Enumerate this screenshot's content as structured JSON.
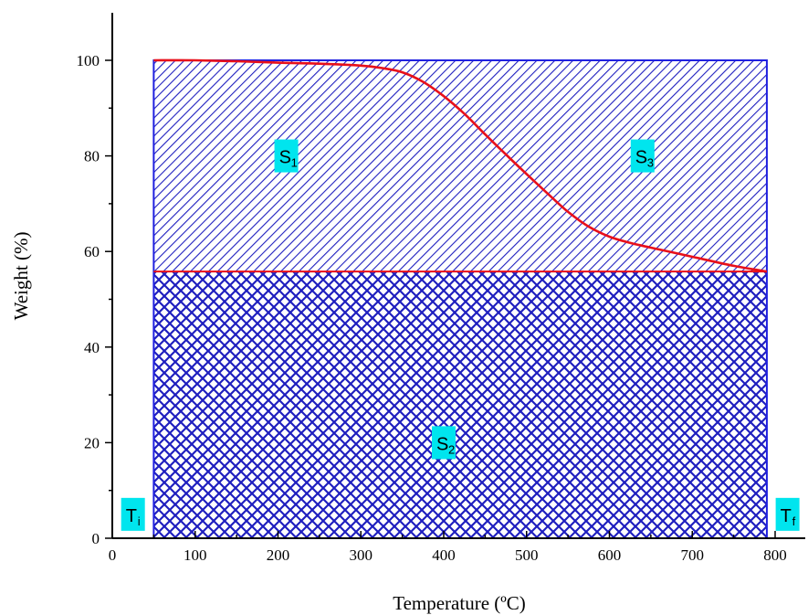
{
  "chart_data": {
    "type": "area",
    "xlabel": "Temperature (ºC)",
    "ylabel": "Weight (%)",
    "xlim": [
      0,
      800
    ],
    "ylim": [
      0,
      100
    ],
    "xticks": [
      0,
      100,
      200,
      300,
      400,
      500,
      600,
      700,
      800
    ],
    "yticks": [
      0,
      20,
      40,
      60,
      80,
      100
    ],
    "grid": false,
    "colors": {
      "hatch": "#1f1fbf",
      "border": "#2020e0",
      "curve": "#e8101a",
      "label_bg": "#00e5ee"
    },
    "series": [
      {
        "x": [
          50,
          100,
          150,
          200,
          250,
          300,
          325,
          350,
          375,
          400,
          425,
          450,
          475,
          500,
          525,
          550,
          575,
          600,
          625,
          650,
          700,
          750,
          790
        ],
        "y": [
          100,
          100,
          99.8,
          99.5,
          99.3,
          98.9,
          98.4,
          97.5,
          95.5,
          92.5,
          88.8,
          84.5,
          80.3,
          76.2,
          72.2,
          68.3,
          65.2,
          63.1,
          61.8,
          60.8,
          58.9,
          57.0,
          55.8
        ]
      }
    ],
    "regions": [
      {
        "label": "S",
        "sub": "1",
        "x": 210,
        "y": 80
      },
      {
        "label": "S",
        "sub": "3",
        "x": 640,
        "y": 80
      },
      {
        "label": "S",
        "sub": "2",
        "x": 400,
        "y": 20
      },
      {
        "label": "T",
        "sub": "i",
        "x": 25,
        "y": 5
      },
      {
        "label": "T",
        "sub": "f",
        "x": 815,
        "y": 5
      }
    ],
    "shaded_area": {
      "x_start": 50,
      "x_end": 790,
      "y_top": 100,
      "y_residual": 55.8
    }
  }
}
